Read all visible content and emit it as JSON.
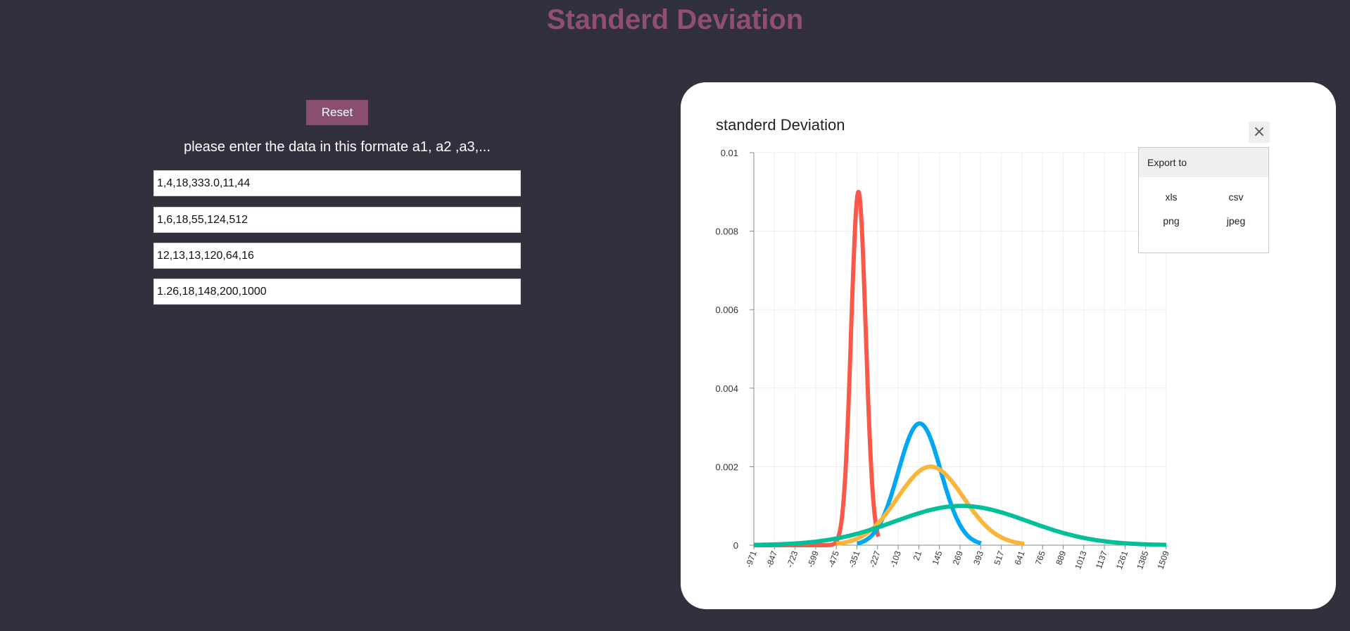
{
  "page": {
    "title": "Standerd Deviation"
  },
  "controls": {
    "reset_label": "Reset",
    "instructions": "please enter the data in this formate a1, a2 ,a3,...",
    "inputs": [
      "1,4,18,333.0,11,44",
      "1,6,18,55,124,512",
      "12,13,13,120,64,16",
      "1.26,18,148,200,1000"
    ]
  },
  "chart": {
    "title": "standerd Deviation",
    "close_icon": "×",
    "export": {
      "header": "Export to",
      "options": [
        "xls",
        "csv",
        "png",
        "jpeg"
      ]
    }
  },
  "colors": {
    "background": "#31303d",
    "accent": "#8a4e6f",
    "series": [
      "#f9594b",
      "#00a8f3",
      "#fcb53b",
      "#00bf99"
    ]
  },
  "chart_data": {
    "type": "line",
    "title": "standerd Deviation",
    "xlabel": "",
    "ylabel": "",
    "xlim": [
      -971,
      1509
    ],
    "ylim": [
      0,
      0.01
    ],
    "grid": true,
    "legend": "none",
    "x_ticks": [
      "-971",
      "-847",
      "-723",
      "-599",
      "-475",
      "-351",
      "-227",
      "-103",
      "21",
      "145",
      "269",
      "393",
      "517",
      "641",
      "765",
      "889",
      "1013",
      "1137",
      "1261",
      "1385",
      "1509"
    ],
    "y_ticks": [
      "0",
      "0.002",
      "0.004",
      "0.006",
      "0.008",
      "0.01"
    ],
    "series": [
      {
        "color": "#f9594b",
        "mean": -342,
        "sd": 44,
        "x_range": [
          -971,
          -222
        ],
        "peak": 0.009
      },
      {
        "color": "#00a8f3",
        "mean": 26,
        "sd": 128,
        "x_range": [
          -351,
          395
        ],
        "peak": 0.0031
      },
      {
        "color": "#fcb53b",
        "mean": 92,
        "sd": 198,
        "x_range": [
          -475,
          655
        ],
        "peak": 0.002
      },
      {
        "color": "#00bf99",
        "mean": 278,
        "sd": 400,
        "x_range": [
          -971,
          1509
        ],
        "peak": 0.001
      }
    ]
  }
}
